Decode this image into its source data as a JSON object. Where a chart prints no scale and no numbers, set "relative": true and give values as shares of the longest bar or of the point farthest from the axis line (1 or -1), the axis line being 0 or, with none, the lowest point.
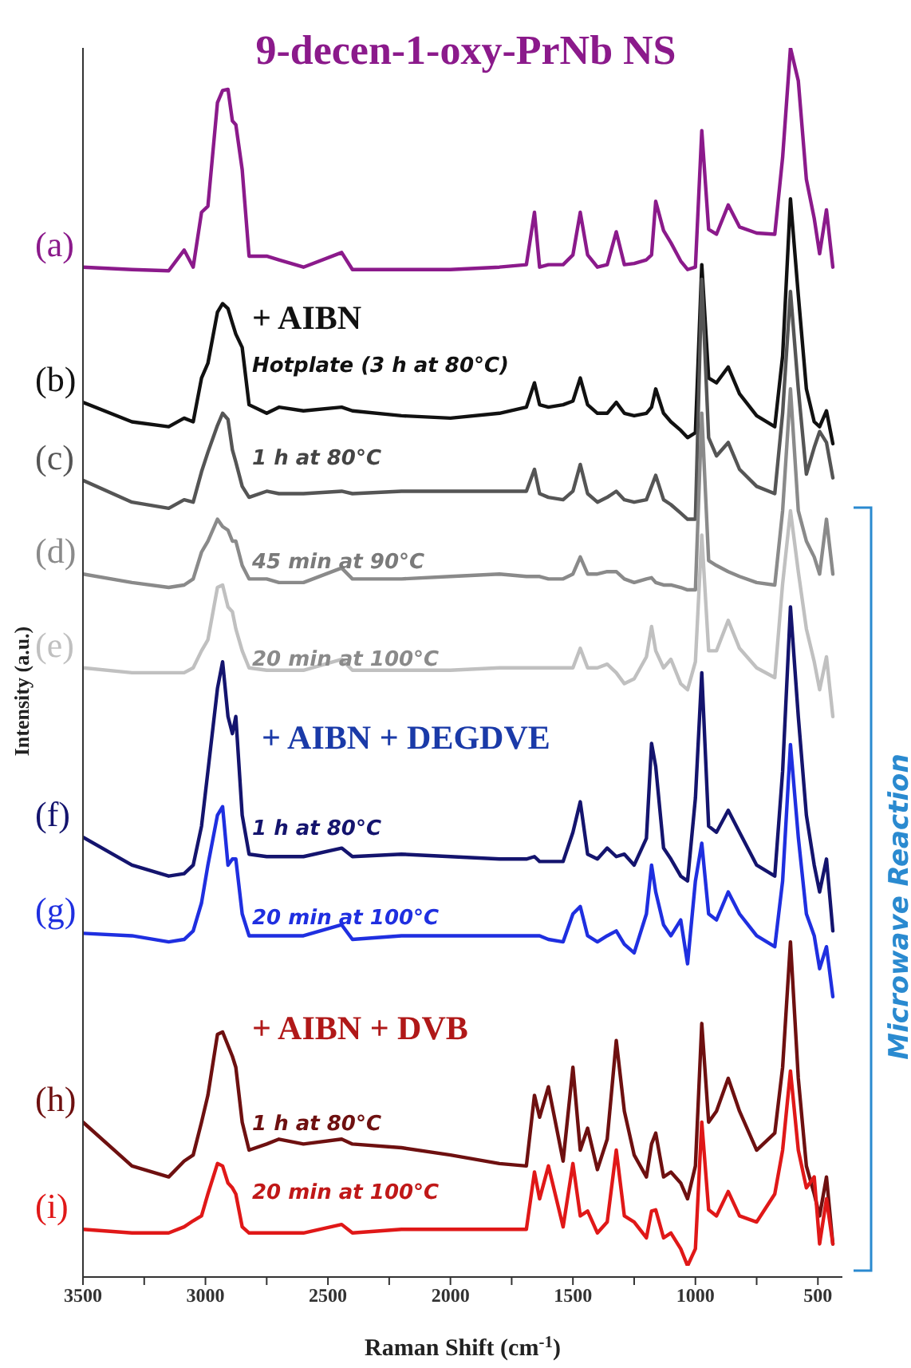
{
  "chart_data": {
    "type": "line",
    "relative": true,
    "title": "9-decen-1-oxy-PrNb NS",
    "xlabel": "Raman Shift (cm$^{-1}$)",
    "ylabel": "Intensity (a.u.)",
    "xlim": [
      3500,
      400
    ],
    "xticks": [
      3500,
      {
        "value": 3250,
        "label": null
      },
      3000,
      {
        "value": 2750,
        "label": null
      },
      2500,
      {
        "value": 2250,
        "label": null
      },
      2000,
      {
        "value": 1750,
        "label": null
      },
      1500,
      {
        "value": 1250,
        "label": null
      },
      1000,
      {
        "value": 750,
        "label": null
      },
      500
    ],
    "x": [
      3500,
      3300,
      3150,
      3087,
      3050,
      3016,
      2990,
      2951,
      2930,
      2908,
      2890,
      2876,
      2850,
      2822,
      2750,
      2700,
      2600,
      2444,
      2400,
      2200,
      2000,
      1800,
      1690,
      1657,
      1636,
      1600,
      1540,
      1500,
      1470,
      1440,
      1400,
      1360,
      1323,
      1290,
      1250,
      1200,
      1179,
      1162,
      1130,
      1100,
      1060,
      1032,
      1000,
      974,
      946,
      914,
      866,
      820,
      750,
      676,
      644,
      612,
      580,
      547,
      515,
      493,
      465,
      439
    ],
    "series": [
      {
        "name": "(a)",
        "color": "#8b1a8b",
        "values": [
          0.82,
          0.818,
          0.817,
          0.834,
          0.82,
          0.865,
          0.87,
          0.955,
          0.965,
          0.966,
          0.94,
          0.937,
          0.9,
          0.829,
          0.829,
          0.826,
          0.82,
          0.832,
          0.818,
          0.818,
          0.818,
          0.82,
          0.822,
          0.865,
          0.82,
          0.822,
          0.822,
          0.83,
          0.865,
          0.83,
          0.82,
          0.822,
          0.849,
          0.822,
          0.823,
          0.826,
          0.83,
          0.874,
          0.85,
          0.84,
          0.825,
          0.818,
          0.82,
          0.932,
          0.851,
          0.847,
          0.871,
          0.853,
          0.848,
          0.847,
          0.91,
          1,
          0.973,
          0.892,
          0.86,
          0.831,
          0.867,
          0.82
        ]
      },
      {
        "name": "(b)",
        "color": "#111111",
        "values": [
          0.709,
          0.693,
          0.689,
          0.696,
          0.693,
          0.729,
          0.741,
          0.783,
          0.79,
          0.786,
          0.774,
          0.765,
          0.754,
          0.707,
          0.7,
          0.705,
          0.702,
          0.705,
          0.702,
          0.698,
          0.696,
          0.7,
          0.705,
          0.725,
          0.707,
          0.705,
          0.707,
          0.71,
          0.729,
          0.707,
          0.7,
          0.7,
          0.709,
          0.7,
          0.698,
          0.7,
          0.705,
          0.72,
          0.7,
          0.693,
          0.686,
          0.68,
          0.684,
          0.822,
          0.729,
          0.725,
          0.738,
          0.716,
          0.698,
          0.689,
          0.747,
          0.876,
          0.797,
          0.72,
          0.693,
          0.689,
          0.702,
          0.675
        ]
      },
      {
        "name": "(c)",
        "color": "#555555",
        "values": [
          0.645,
          0.627,
          0.622,
          0.629,
          0.627,
          0.652,
          0.668,
          0.69,
          0.7,
          0.695,
          0.67,
          0.66,
          0.64,
          0.631,
          0.636,
          0.634,
          0.634,
          0.636,
          0.634,
          0.636,
          0.636,
          0.636,
          0.636,
          0.654,
          0.634,
          0.631,
          0.629,
          0.636,
          0.658,
          0.634,
          0.627,
          0.631,
          0.636,
          0.629,
          0.627,
          0.629,
          0.64,
          0.649,
          0.629,
          0.625,
          0.618,
          0.613,
          0.613,
          0.81,
          0.68,
          0.665,
          0.676,
          0.654,
          0.64,
          0.634,
          0.7,
          0.8,
          0.72,
          0.65,
          0.672,
          0.685,
          0.676,
          0.647
        ]
      },
      {
        "name": "(d)",
        "color": "#8a8a8a",
        "values": [
          0.568,
          0.561,
          0.557,
          0.559,
          0.564,
          0.586,
          0.595,
          0.613,
          0.607,
          0.604,
          0.595,
          0.595,
          0.575,
          0.564,
          0.564,
          0.561,
          0.561,
          0.573,
          0.564,
          0.564,
          0.566,
          0.568,
          0.566,
          0.566,
          0.566,
          0.564,
          0.564,
          0.568,
          0.582,
          0.568,
          0.568,
          0.57,
          0.57,
          0.564,
          0.561,
          0.564,
          0.565,
          0.561,
          0.559,
          0.559,
          0.557,
          0.555,
          0.555,
          0.7,
          0.579,
          0.575,
          0.57,
          0.566,
          0.561,
          0.559,
          0.62,
          0.72,
          0.62,
          0.595,
          0.582,
          0.568,
          0.613,
          0.568
        ]
      },
      {
        "name": "(e)",
        "color": "#c0c0c0",
        "values": [
          0.491,
          0.487,
          0.487,
          0.487,
          0.491,
          0.505,
          0.514,
          0.557,
          0.559,
          0.541,
          0.537,
          0.523,
          0.505,
          0.491,
          0.489,
          0.489,
          0.489,
          0.498,
          0.489,
          0.489,
          0.489,
          0.491,
          0.491,
          0.491,
          0.491,
          0.491,
          0.491,
          0.491,
          0.507,
          0.491,
          0.491,
          0.494,
          0.487,
          0.478,
          0.482,
          0.5,
          0.525,
          0.505,
          0.491,
          0.498,
          0.478,
          0.473,
          0.496,
          0.6,
          0.505,
          0.505,
          0.53,
          0.507,
          0.491,
          0.483,
          0.56,
          0.62,
          0.57,
          0.523,
          0.496,
          0.473,
          0.5,
          0.451
        ]
      },
      {
        "name": "(f)",
        "color": "#14146e",
        "values": [
          0.352,
          0.329,
          0.32,
          0.322,
          0.329,
          0.361,
          0.406,
          0.474,
          0.496,
          0.451,
          0.437,
          0.451,
          0.37,
          0.338,
          0.336,
          0.336,
          0.336,
          0.343,
          0.336,
          0.338,
          0.336,
          0.334,
          0.334,
          0.336,
          0.332,
          0.332,
          0.332,
          0.356,
          0.381,
          0.338,
          0.334,
          0.343,
          0.336,
          0.338,
          0.329,
          0.351,
          0.429,
          0.41,
          0.343,
          0.334,
          0.32,
          0.316,
          0.384,
          0.487,
          0.361,
          0.356,
          0.374,
          0.356,
          0.329,
          0.32,
          0.406,
          0.541,
          0.451,
          0.37,
          0.329,
          0.307,
          0.334,
          0.275
        ]
      },
      {
        "name": "(g)",
        "color": "#1f2fe0",
        "values": [
          0.273,
          0.271,
          0.266,
          0.268,
          0.275,
          0.298,
          0.329,
          0.37,
          0.377,
          0.329,
          0.334,
          0.334,
          0.289,
          0.271,
          0.271,
          0.271,
          0.271,
          0.28,
          0.268,
          0.271,
          0.271,
          0.271,
          0.271,
          0.271,
          0.271,
          0.268,
          0.266,
          0.289,
          0.295,
          0.271,
          0.266,
          0.271,
          0.275,
          0.264,
          0.257,
          0.289,
          0.329,
          0.307,
          0.28,
          0.271,
          0.284,
          0.248,
          0.316,
          0.347,
          0.289,
          0.284,
          0.307,
          0.289,
          0.271,
          0.262,
          0.316,
          0.428,
          0.352,
          0.289,
          0.271,
          0.244,
          0.262,
          0.221
        ]
      },
      {
        "name": "(h)",
        "color": "#6e1010",
        "values": [
          0.118,
          0.082,
          0.073,
          0.086,
          0.091,
          0.118,
          0.14,
          0.19,
          0.192,
          0.181,
          0.172,
          0.163,
          0.118,
          0.095,
          0.1,
          0.104,
          0.1,
          0.104,
          0.1,
          0.097,
          0.091,
          0.084,
          0.082,
          0.14,
          0.122,
          0.147,
          0.086,
          0.163,
          0.095,
          0.113,
          0.079,
          0.104,
          0.185,
          0.127,
          0.091,
          0.073,
          0.1,
          0.109,
          0.073,
          0.077,
          0.068,
          0.055,
          0.082,
          0.199,
          0.118,
          0.127,
          0.154,
          0.127,
          0.095,
          0.109,
          0.163,
          0.266,
          0.154,
          0.082,
          0.059,
          0.041,
          0.073,
          0.018
        ]
      },
      {
        "name": "(i)",
        "color": "#e01818",
        "values": [
          0.03,
          0.027,
          0.027,
          0.032,
          0.037,
          0.041,
          0.059,
          0.084,
          0.082,
          0.068,
          0.064,
          0.059,
          0.032,
          0.027,
          0.027,
          0.027,
          0.027,
          0.034,
          0.027,
          0.03,
          0.03,
          0.03,
          0.03,
          0.077,
          0.055,
          0.082,
          0.032,
          0.084,
          0.041,
          0.045,
          0.027,
          0.036,
          0.095,
          0.041,
          0.036,
          0.023,
          0.045,
          0.046,
          0.023,
          0.027,
          0.014,
          0,
          0.014,
          0.118,
          0.046,
          0.041,
          0.061,
          0.041,
          0.036,
          0.059,
          0.095,
          0.16,
          0.095,
          0.064,
          0.073,
          0.018,
          0.055,
          0.018
        ]
      }
    ],
    "annotations": [
      "+ AIBN",
      "Hotplate (3 h at 80°C)",
      "1 h at 80°C",
      "45 min at 90°C",
      "20 min at 100°C",
      "+ AIBN + DEGDVE",
      "1 h at 80°C",
      "20 min at 100°C",
      "+ AIBN + DVB",
      "1 h at 80°C",
      "20 min at 100°C",
      "Microwave Reaction"
    ]
  }
}
